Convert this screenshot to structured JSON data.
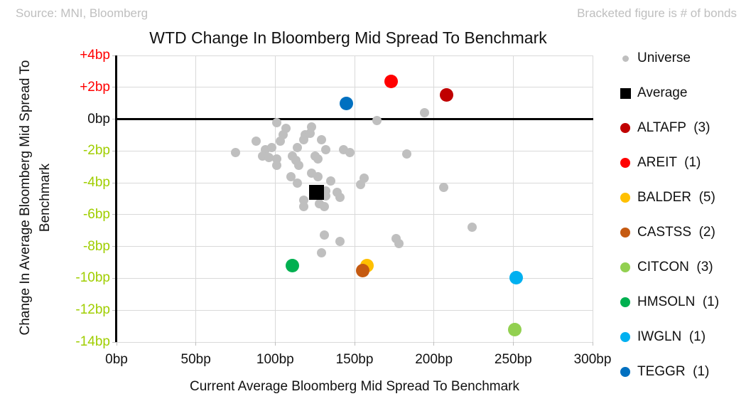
{
  "header": {
    "source": "Source: MNI, Bloomberg",
    "note": "Bracketed figure is # of bonds"
  },
  "chart_data": {
    "type": "scatter",
    "title": "WTD Change In Bloomberg Mid Spread To Benchmark",
    "xlabel": "Current Average Bloomberg Mid Spread To Benchmark",
    "ylabel_line1": "Change In Average Bloomberg Mid Spread To",
    "ylabel_line2": "Benchmark",
    "xlim": [
      0,
      300
    ],
    "ylim": [
      -14,
      4
    ],
    "grid": true,
    "legend_position": "right",
    "x_unit": "bp",
    "zero_line_color": "#000000",
    "grid_color": "#D9D9D9",
    "x_ticks": [
      {
        "value": 0,
        "label": "0bp",
        "color": "#111111"
      },
      {
        "value": 50,
        "label": "50bp",
        "color": "#111111"
      },
      {
        "value": 100,
        "label": "100bp",
        "color": "#111111"
      },
      {
        "value": 150,
        "label": "150bp",
        "color": "#111111"
      },
      {
        "value": 200,
        "label": "200bp",
        "color": "#111111"
      },
      {
        "value": 250,
        "label": "250bp",
        "color": "#111111"
      },
      {
        "value": 300,
        "label": "300bp",
        "color": "#111111"
      }
    ],
    "y_ticks": [
      {
        "value": 4,
        "label": "+4bp",
        "color": "#FF0000"
      },
      {
        "value": 2,
        "label": "+2bp",
        "color": "#FF0000"
      },
      {
        "value": 0,
        "label": "0bp",
        "color": "#111111"
      },
      {
        "value": -2,
        "label": "-2bp",
        "color": "#A0CE00"
      },
      {
        "value": -4,
        "label": "-4bp",
        "color": "#A0CE00"
      },
      {
        "value": -6,
        "label": "-6bp",
        "color": "#A0CE00"
      },
      {
        "value": -8,
        "label": "-8bp",
        "color": "#A0CE00"
      },
      {
        "value": -10,
        "label": "-10bp",
        "color": "#A0CE00"
      },
      {
        "value": -12,
        "label": "-12bp",
        "color": "#A0CE00"
      },
      {
        "value": -14,
        "label": "-14bp",
        "color": "#A0CE00"
      }
    ],
    "series": [
      {
        "name": "Universe",
        "label": "Universe",
        "color": "#BFBFBF",
        "marker": "circle",
        "size": 13,
        "legend_size": 9,
        "points": [
          [
            164,
            -0.1
          ],
          [
            194,
            0.4
          ],
          [
            101,
            -0.2
          ],
          [
            107,
            -0.6
          ],
          [
            123,
            -0.5
          ],
          [
            105,
            -1.0
          ],
          [
            119,
            -1.0
          ],
          [
            122,
            -0.9
          ],
          [
            88,
            -1.4
          ],
          [
            103,
            -1.4
          ],
          [
            118,
            -1.3
          ],
          [
            129,
            -1.3
          ],
          [
            75,
            -2.1
          ],
          [
            94,
            -1.9
          ],
          [
            98,
            -1.8
          ],
          [
            114,
            -1.8
          ],
          [
            132,
            -1.9
          ],
          [
            143,
            -1.9
          ],
          [
            147,
            -2.1
          ],
          [
            183,
            -2.2
          ],
          [
            92,
            -2.3
          ],
          [
            96,
            -2.4
          ],
          [
            111,
            -2.3
          ],
          [
            125,
            -2.3
          ],
          [
            127,
            -2.5
          ],
          [
            101,
            -2.5
          ],
          [
            113,
            -2.6
          ],
          [
            101,
            -2.9
          ],
          [
            115,
            -2.9
          ],
          [
            123,
            -3.4
          ],
          [
            127,
            -3.6
          ],
          [
            110,
            -3.6
          ],
          [
            156,
            -3.7
          ],
          [
            135,
            -3.9
          ],
          [
            114,
            -4.0
          ],
          [
            154,
            -4.1
          ],
          [
            132,
            -4.5
          ],
          [
            139,
            -4.6
          ],
          [
            132,
            -4.8
          ],
          [
            141,
            -4.9
          ],
          [
            118,
            -5.1
          ],
          [
            128,
            -5.3
          ],
          [
            118,
            -5.5
          ],
          [
            131,
            -5.5
          ],
          [
            206,
            -4.3
          ],
          [
            224,
            -6.8
          ],
          [
            131,
            -7.3
          ],
          [
            141,
            -7.7
          ],
          [
            176,
            -7.5
          ],
          [
            178,
            -7.8
          ],
          [
            129,
            -8.4
          ]
        ]
      },
      {
        "name": "Average",
        "label": "Average",
        "color": "#000000",
        "marker": "square",
        "size": 21,
        "legend_size": 15,
        "points": [
          [
            126,
            -4.6
          ]
        ]
      },
      {
        "name": "ALTAFP",
        "label": "ALTAFP  (3)",
        "color": "#C00000",
        "marker": "circle",
        "size": 19,
        "legend_size": 14,
        "points": [
          [
            208,
            1.5
          ]
        ]
      },
      {
        "name": "AREIT",
        "label": "AREIT  (1)",
        "color": "#FF0000",
        "marker": "circle",
        "size": 19,
        "legend_size": 14,
        "points": [
          [
            173,
            2.35
          ]
        ]
      },
      {
        "name": "BALDER",
        "label": "BALDER  (5)",
        "color": "#FFC000",
        "marker": "circle",
        "size": 19,
        "legend_size": 14,
        "points": [
          [
            158,
            -9.2
          ]
        ]
      },
      {
        "name": "CASTSS",
        "label": "CASTSS  (2)",
        "color": "#C55A11",
        "marker": "circle",
        "size": 19,
        "legend_size": 14,
        "points": [
          [
            155,
            -9.5
          ]
        ]
      },
      {
        "name": "CITCON",
        "label": "CITCON  (3)",
        "color": "#92D050",
        "marker": "circle",
        "size": 19,
        "legend_size": 14,
        "points": [
          [
            251,
            -13.2
          ]
        ]
      },
      {
        "name": "HMSOLN",
        "label": "HMSOLN  (1)",
        "color": "#00B050",
        "marker": "circle",
        "size": 19,
        "legend_size": 14,
        "points": [
          [
            111,
            -9.2
          ]
        ]
      },
      {
        "name": "IWGLN",
        "label": "IWGLN  (1)",
        "color": "#00B0F0",
        "marker": "circle",
        "size": 19,
        "legend_size": 14,
        "points": [
          [
            252,
            -9.95
          ]
        ]
      },
      {
        "name": "TEGGR",
        "label": "TEGGR  (1)",
        "color": "#0070C0",
        "marker": "circle",
        "size": 19,
        "legend_size": 14,
        "points": [
          [
            145,
            1.0
          ]
        ]
      }
    ]
  }
}
